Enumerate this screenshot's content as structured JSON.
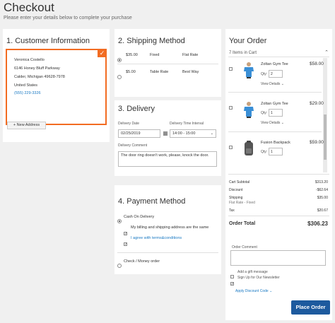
{
  "page": {
    "title": "Checkout",
    "subtitle": "Please enter your details below to complete your purchase"
  },
  "customer": {
    "heading": "1. Customer Information",
    "address": {
      "name": "Veronica Costello",
      "street": "6146 Honey Bluff Parkway",
      "city": "Calder, Michigan 49628-7978",
      "country": "United States",
      "phone": "(555) 229-3326"
    },
    "new_address_label": "+ New Address"
  },
  "shipping": {
    "heading": "2. Shipping Method",
    "methods": [
      {
        "price": "$35.00",
        "type": "Fixed",
        "carrier": "Flat Rate",
        "selected": true
      },
      {
        "price": "$5.00",
        "type": "Table Rate",
        "carrier": "Best Way",
        "selected": false
      }
    ]
  },
  "delivery": {
    "heading": "3. Delivery",
    "date_label": "Delivery Date",
    "date_value": "02/25/2019",
    "interval_label": "Delivery Time Interval",
    "interval_value": "14:00 - 15:00",
    "comment_label": "Delivery Comment",
    "comment_value": "The door ring doesn't work, please, knock the door."
  },
  "payment": {
    "heading": "4. Payment Method",
    "options": [
      {
        "label": "Cash On Delivery",
        "selected": true
      },
      {
        "label": "Check / Money order",
        "selected": false
      }
    ],
    "same_address_label": "My billing and shipping address are the same",
    "terms_label": "I agree with terms&conditions"
  },
  "order": {
    "heading": "Your Order",
    "items_count": "7 Items in Cart",
    "qty_label": "Qty:",
    "details_label": "View Details",
    "items": [
      {
        "name": "Zoltan Gym Tee",
        "price": "$58.00",
        "qty": "2"
      },
      {
        "name": "Zoltan Gym Tee",
        "price": "$29.00",
        "qty": "1"
      },
      {
        "name": "Fusion Backpack",
        "price": "$59.00",
        "qty": "1"
      }
    ],
    "totals": {
      "subtotal_label": "Cart Subtotal",
      "subtotal": "$313.20",
      "discount_label": "Discount",
      "discount": "-$62.64",
      "shipping_label": "Shipping",
      "shipping": "$35.00",
      "shipping_method": "Flat Rate - Fixed",
      "tax_label": "Tax",
      "tax": "$20.67",
      "total_label": "Order Total",
      "total": "$306.23"
    },
    "comment_label": "Order Comment",
    "gift_label": "Add a gift message",
    "newsletter_label": "Sign Up for Our Newsletter",
    "discount_code_label": "Apply Discount Code",
    "place_order_label": "Place Order"
  },
  "colors": {
    "accent": "#f26c22",
    "primary": "#1d5a9e",
    "link": "#1979c3"
  }
}
